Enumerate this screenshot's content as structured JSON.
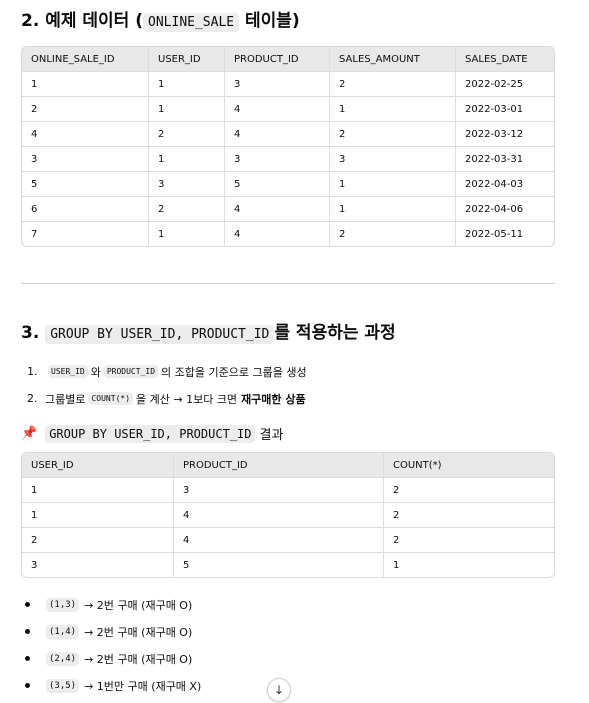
{
  "section1": {
    "heading_prefix": "2. 예제 데이터 (",
    "heading_code": "ONLINE_SALE",
    "heading_suffix": " 테이블)"
  },
  "table1": {
    "headers": [
      "ONLINE_SALE_ID",
      "USER_ID",
      "PRODUCT_ID",
      "SALES_AMOUNT",
      "SALES_DATE"
    ],
    "rows": [
      [
        "1",
        "1",
        "3",
        "2",
        "2022-02-25"
      ],
      [
        "2",
        "1",
        "4",
        "1",
        "2022-03-01"
      ],
      [
        "4",
        "2",
        "4",
        "2",
        "2022-03-12"
      ],
      [
        "3",
        "1",
        "3",
        "3",
        "2022-03-31"
      ],
      [
        "5",
        "3",
        "5",
        "1",
        "2022-04-03"
      ],
      [
        "6",
        "2",
        "4",
        "1",
        "2022-04-06"
      ],
      [
        "7",
        "1",
        "4",
        "2",
        "2022-05-11"
      ]
    ]
  },
  "section2": {
    "heading_prefix": "3. ",
    "heading_code": "GROUP BY USER_ID, PRODUCT_ID",
    "heading_suffix": "를 적용하는 과정",
    "steps": [
      {
        "num": "1.",
        "code1": "USER_ID",
        "text1": "와",
        "code2": "PRODUCT_ID",
        "text2": "의 조합을 기준으로 그룹을 생성"
      },
      {
        "num": "2.",
        "text0": "그룹별로",
        "code1": "COUNT(*)",
        "text1": "을 계산 → 1보다 크면",
        "bold": "재구매한 상품"
      }
    ],
    "sub_icon": "📌",
    "sub_code": "GROUP BY USER_ID, PRODUCT_ID",
    "sub_text": "결과"
  },
  "table2": {
    "headers": [
      "USER_ID",
      "PRODUCT_ID",
      "COUNT(*)"
    ],
    "rows": [
      [
        "1",
        "3",
        "2"
      ],
      [
        "1",
        "4",
        "2"
      ],
      [
        "2",
        "4",
        "2"
      ],
      [
        "3",
        "5",
        "1"
      ]
    ]
  },
  "bullets": [
    {
      "code": "(1,3)",
      "text": "→ 2번 구매 (재구매 O)"
    },
    {
      "code": "(1,4)",
      "text": "→ 2번 구매 (재구매 O)"
    },
    {
      "code": "(2,4)",
      "text": "→ 2번 구매 (재구매 O)"
    },
    {
      "code": "(3,5)",
      "text": "→ 1번만 구매 (재구매 X)"
    }
  ],
  "scroll_icon": "↓"
}
